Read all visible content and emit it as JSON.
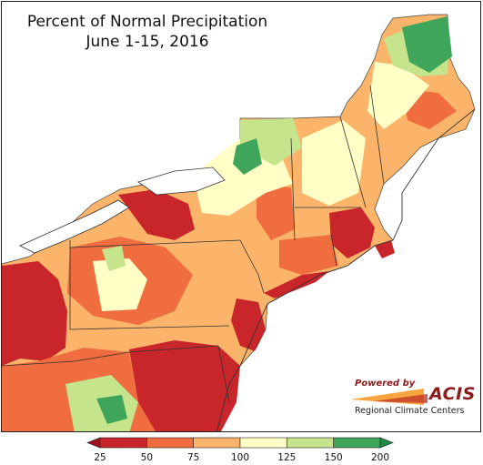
{
  "title": {
    "line1": "Percent of Normal Precipitation",
    "line2": "June 1-15, 2016"
  },
  "legend": {
    "ticks": [
      "25",
      "50",
      "75",
      "100",
      "125",
      "150",
      "200"
    ],
    "colors": [
      "#c8262b",
      "#ef6d3f",
      "#fbb46a",
      "#ffffc6",
      "#c5e48b",
      "#3fa55a"
    ],
    "min_arrow_color": "#a01020",
    "max_arrow_color": "#1d8a45"
  },
  "logo": {
    "powered_by": "Powered by",
    "name": "ACIS",
    "subtitle": "Regional Climate Centers"
  }
}
